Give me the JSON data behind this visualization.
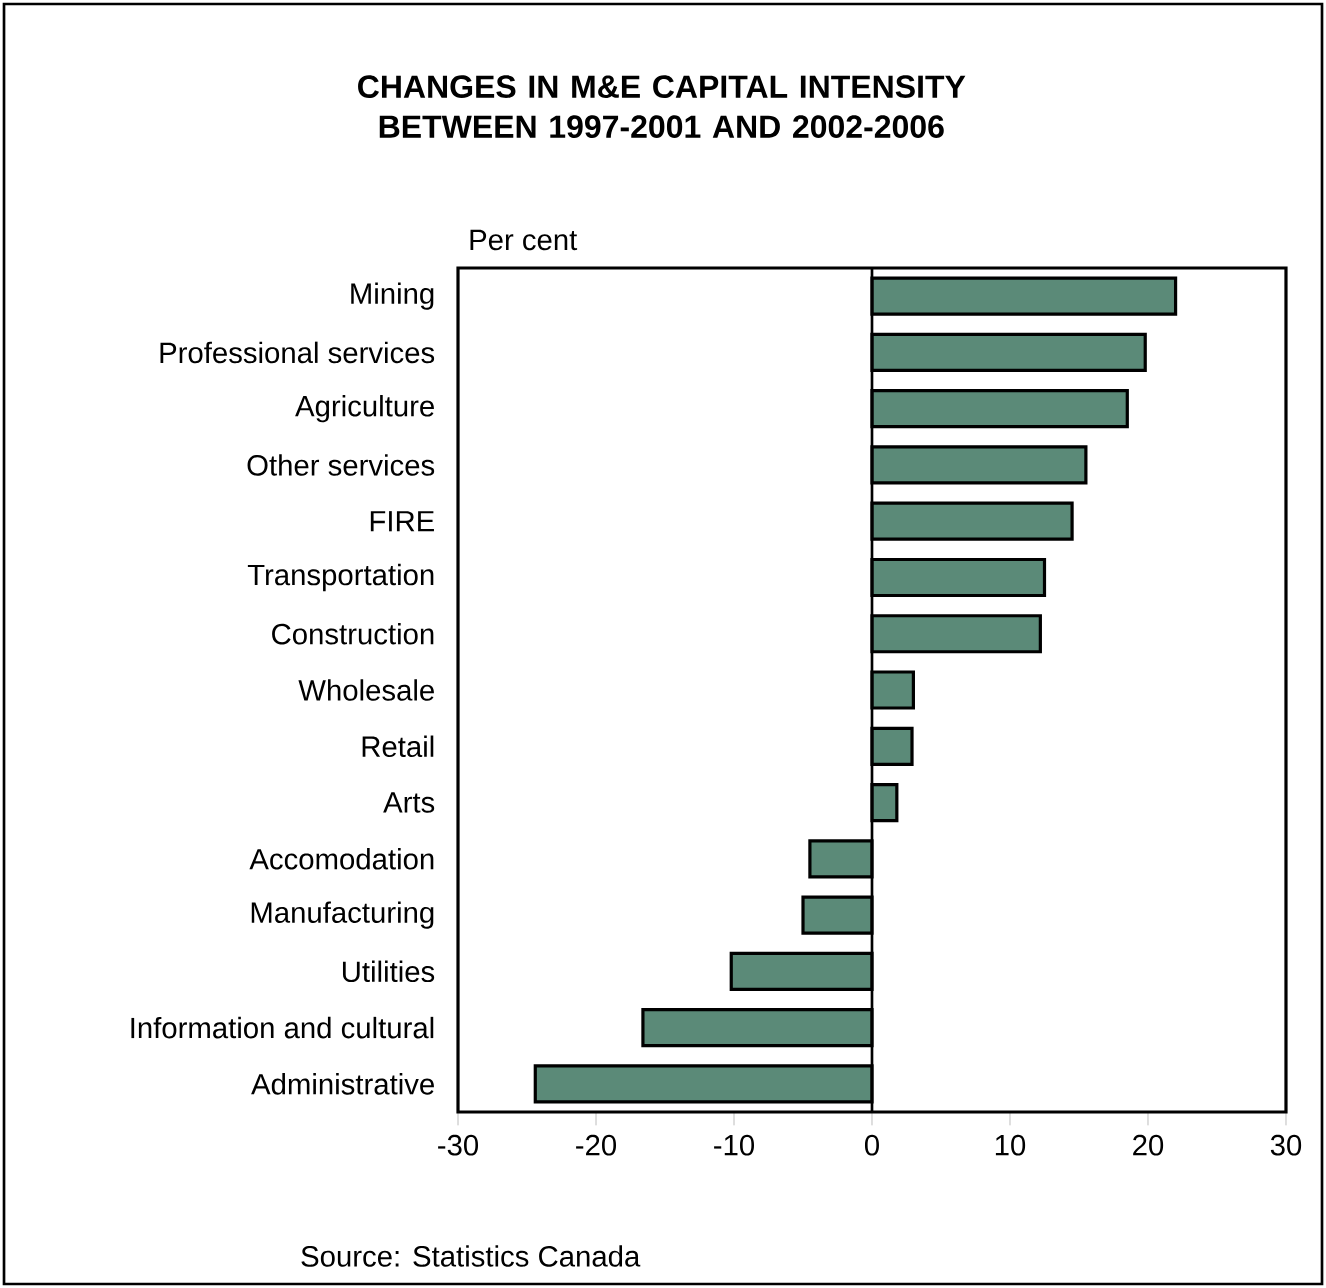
{
  "chart_data": {
    "type": "bar",
    "orientation": "horizontal",
    "title": "CHANGES IN M&E CAPITAL INTENSITY BETWEEN 1997-2001 AND 2002-2006",
    "xlabel": "Per cent",
    "categories": [
      "Mining",
      "Professional services",
      "Agriculture",
      "Other services",
      "FIRE",
      "Transportation",
      "Construction",
      "Wholesale",
      "Retail",
      "Arts",
      "Accomodation",
      "Manufacturing",
      "Utilities",
      "Information and cultural",
      "Administrative"
    ],
    "values": [
      22.0,
      19.8,
      18.5,
      15.5,
      14.5,
      12.5,
      12.2,
      3.0,
      2.9,
      1.8,
      -4.5,
      -5.0,
      -10.2,
      -16.6,
      -24.4
    ],
    "color": "#5b8a78",
    "xlim": [
      -30,
      30
    ],
    "xticks": [
      -30,
      -20,
      -10,
      0,
      10,
      20,
      30
    ],
    "annotations": [
      "Source: Statistics Canada"
    ]
  }
}
